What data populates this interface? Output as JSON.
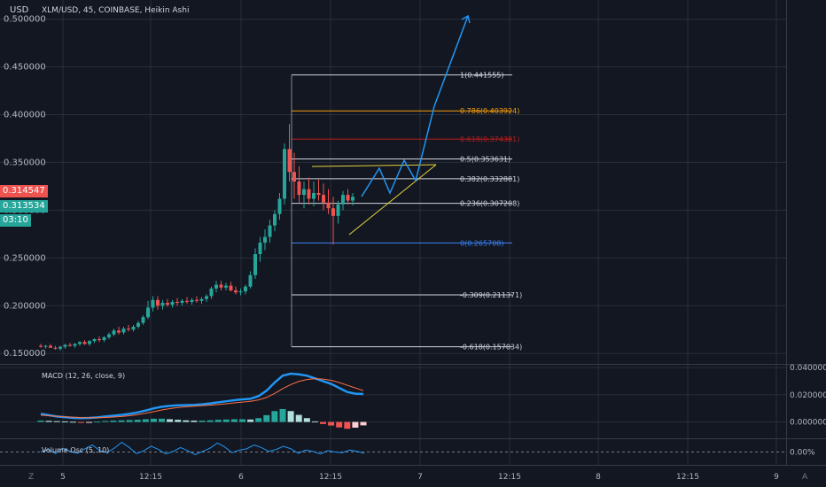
{
  "header": {
    "currency": "USD",
    "title": "XLM/USD, 45, COINBASE, Heikin Ashi"
  },
  "price_tags": {
    "last_close": "0.314547",
    "prev": "0.313534",
    "countdown": "03:10",
    "last_color": "#ef5350",
    "prev_color": "#26a69a"
  },
  "chart_data": [
    {
      "type": "candlestick",
      "title": "XLM/USD, 45, COINBASE, Heikin Ashi",
      "ylim": [
        0.14,
        0.52
      ],
      "y_ticks": [
        "0.500000",
        "0.450000",
        "0.400000",
        "0.350000",
        "0.300000",
        "0.250000",
        "0.200000",
        "0.150000"
      ],
      "y_tick_values": [
        0.5,
        0.45,
        0.4,
        0.35,
        0.3,
        0.25,
        0.2,
        0.15
      ],
      "x_ticks": [
        "5",
        "12:15",
        "6",
        "12:15",
        "7",
        "12:15",
        "8",
        "12:15",
        "9"
      ],
      "up_color": "#26a69a",
      "down_color": "#ef5350",
      "candles": [
        [
          0.158,
          0.16,
          0.156,
          0.157
        ],
        [
          0.157,
          0.159,
          0.155,
          0.158
        ],
        [
          0.158,
          0.16,
          0.156,
          0.156
        ],
        [
          0.156,
          0.158,
          0.154,
          0.155
        ],
        [
          0.155,
          0.158,
          0.153,
          0.157
        ],
        [
          0.157,
          0.16,
          0.155,
          0.159
        ],
        [
          0.159,
          0.161,
          0.157,
          0.158
        ],
        [
          0.158,
          0.161,
          0.156,
          0.16
        ],
        [
          0.16,
          0.163,
          0.158,
          0.162
        ],
        [
          0.162,
          0.164,
          0.159,
          0.16
        ],
        [
          0.16,
          0.164,
          0.158,
          0.163
        ],
        [
          0.163,
          0.166,
          0.161,
          0.165
        ],
        [
          0.165,
          0.168,
          0.162,
          0.164
        ],
        [
          0.164,
          0.168,
          0.162,
          0.167
        ],
        [
          0.167,
          0.172,
          0.165,
          0.17
        ],
        [
          0.17,
          0.176,
          0.168,
          0.174
        ],
        [
          0.174,
          0.178,
          0.17,
          0.172
        ],
        [
          0.172,
          0.178,
          0.17,
          0.176
        ],
        [
          0.176,
          0.18,
          0.173,
          0.175
        ],
        [
          0.175,
          0.18,
          0.173,
          0.178
        ],
        [
          0.178,
          0.184,
          0.176,
          0.182
        ],
        [
          0.182,
          0.19,
          0.18,
          0.188
        ],
        [
          0.188,
          0.205,
          0.186,
          0.198
        ],
        [
          0.198,
          0.21,
          0.194,
          0.206
        ],
        [
          0.206,
          0.21,
          0.196,
          0.2
        ],
        [
          0.2,
          0.206,
          0.196,
          0.203
        ],
        [
          0.203,
          0.207,
          0.199,
          0.201
        ],
        [
          0.201,
          0.206,
          0.198,
          0.204
        ],
        [
          0.204,
          0.208,
          0.2,
          0.203
        ],
        [
          0.203,
          0.207,
          0.2,
          0.205
        ],
        [
          0.205,
          0.209,
          0.202,
          0.204
        ],
        [
          0.204,
          0.208,
          0.201,
          0.206
        ],
        [
          0.206,
          0.21,
          0.203,
          0.205
        ],
        [
          0.205,
          0.209,
          0.202,
          0.207
        ],
        [
          0.207,
          0.212,
          0.204,
          0.21
        ],
        [
          0.21,
          0.22,
          0.207,
          0.218
        ],
        [
          0.218,
          0.226,
          0.214,
          0.222
        ],
        [
          0.222,
          0.226,
          0.216,
          0.219
        ],
        [
          0.219,
          0.224,
          0.216,
          0.221
        ],
        [
          0.221,
          0.225,
          0.215,
          0.216
        ],
        [
          0.216,
          0.22,
          0.212,
          0.214
        ],
        [
          0.214,
          0.218,
          0.211,
          0.215
        ],
        [
          0.215,
          0.222,
          0.212,
          0.22
        ],
        [
          0.22,
          0.236,
          0.218,
          0.232
        ],
        [
          0.232,
          0.26,
          0.228,
          0.254
        ],
        [
          0.254,
          0.272,
          0.246,
          0.266
        ],
        [
          0.266,
          0.28,
          0.258,
          0.272
        ],
        [
          0.272,
          0.29,
          0.266,
          0.284
        ],
        [
          0.284,
          0.3,
          0.278,
          0.296
        ],
        [
          0.296,
          0.318,
          0.29,
          0.312
        ],
        [
          0.312,
          0.37,
          0.306,
          0.364
        ],
        [
          0.364,
          0.39,
          0.33,
          0.34
        ],
        [
          0.34,
          0.36,
          0.312,
          0.33
        ],
        [
          0.33,
          0.346,
          0.308,
          0.316
        ],
        [
          0.316,
          0.33,
          0.302,
          0.322
        ],
        [
          0.322,
          0.334,
          0.306,
          0.312
        ],
        [
          0.312,
          0.33,
          0.304,
          0.318
        ],
        [
          0.318,
          0.332,
          0.31,
          0.316
        ],
        [
          0.316,
          0.328,
          0.3,
          0.308
        ],
        [
          0.308,
          0.322,
          0.296,
          0.302
        ],
        [
          0.302,
          0.314,
          0.264,
          0.294
        ],
        [
          0.294,
          0.31,
          0.286,
          0.306
        ],
        [
          0.306,
          0.32,
          0.3,
          0.316
        ],
        [
          0.316,
          0.322,
          0.306,
          0.31
        ],
        [
          0.31,
          0.318,
          0.305,
          0.314
        ]
      ],
      "fibonacci": [
        {
          "label": "1(0.441555)",
          "value": 0.441555,
          "color": "#d1d4dc"
        },
        {
          "label": "0.786(0.403924)",
          "value": 0.403924,
          "color": "#f59e0b"
        },
        {
          "label": "0.618(0.374381)",
          "value": 0.374381,
          "color": "#b91c1c"
        },
        {
          "label": "0.5(0.353631)",
          "value": 0.353631,
          "color": "#d1d4dc"
        },
        {
          "label": "0.382(0.332881)",
          "value": 0.332881,
          "color": "#d1d4dc"
        },
        {
          "label": "0.236(0.307208)",
          "value": 0.307208,
          "color": "#d1d4dc"
        },
        {
          "label": "0(0.265708)",
          "value": 0.265708,
          "color": "#3b82f6"
        },
        {
          "label": "-0.309(0.211371)",
          "value": 0.211371,
          "color": "#d1d4dc"
        },
        {
          "label": "-0.618(0.157034)",
          "value": 0.157034,
          "color": "#d1d4dc"
        }
      ]
    },
    {
      "type": "line",
      "title": "MACD (12, 26, close, 9)",
      "ylim": [
        -0.012,
        0.042
      ],
      "y_ticks": [
        "0.040000",
        "0.020000",
        "0.000000"
      ],
      "y_tick_values": [
        0.04,
        0.02,
        0.0
      ],
      "series": [
        {
          "values": [
            0.006,
            0.005,
            0.004,
            0.0035,
            0.003,
            0.0028,
            0.003,
            0.0034,
            0.004,
            0.0046,
            0.0052,
            0.006,
            0.007,
            0.0084,
            0.01,
            0.0112,
            0.0118,
            0.0122,
            0.0124,
            0.0126,
            0.013,
            0.0136,
            0.0144,
            0.0152,
            0.016,
            0.0166,
            0.017,
            0.019,
            0.023,
            0.029,
            0.034,
            0.0355,
            0.035,
            0.034,
            0.032,
            0.03,
            0.028,
            0.025,
            0.022,
            0.0208,
            0.0205
          ],
          "color": "#2196f3"
        },
        {
          "values": [
            0.005,
            0.0046,
            0.0042,
            0.0038,
            0.0035,
            0.0032,
            0.0031,
            0.0031,
            0.0033,
            0.0036,
            0.004,
            0.0046,
            0.0054,
            0.0064,
            0.0076,
            0.0088,
            0.0098,
            0.0106,
            0.0112,
            0.0116,
            0.012,
            0.0124,
            0.0128,
            0.0134,
            0.014,
            0.0146,
            0.0152,
            0.0162,
            0.018,
            0.021,
            0.0245,
            0.0275,
            0.0298,
            0.0312,
            0.0318,
            0.0315,
            0.0306,
            0.029,
            0.027,
            0.025,
            0.023
          ],
          "color": "#ff7043"
        }
      ],
      "histogram": [
        0.001,
        0.0008,
        0.0006,
        0.0004,
        0.0002,
        -0.0002,
        -0.0001,
        0.0003,
        0.0007,
        0.001,
        0.0012,
        0.0014,
        0.0016,
        0.002,
        0.0024,
        0.0024,
        0.002,
        0.0016,
        0.0012,
        0.001,
        0.001,
        0.0012,
        0.0016,
        0.0018,
        0.002,
        0.002,
        0.0018,
        0.0028,
        0.005,
        0.008,
        0.0095,
        0.008,
        0.0052,
        0.0028,
        0.0004,
        -0.0015,
        -0.0026,
        -0.004,
        -0.005,
        -0.0042,
        -0.0025
      ]
    },
    {
      "type": "line",
      "title": "Volume Osc (5, 10)",
      "ylim": [
        -0.4,
        0.4
      ],
      "y_ticks": [
        "0.00%"
      ],
      "y_tick_values": [
        0.0
      ],
      "series": [
        {
          "values": [
            0.0,
            0.08,
            -0.05,
            0.12,
            0.02,
            -0.04,
            0.1,
            0.22,
            0.05,
            -0.02,
            0.12,
            0.3,
            0.15,
            -0.05,
            0.04,
            0.18,
            0.08,
            -0.06,
            0.02,
            0.14,
            0.04,
            -0.08,
            0.02,
            0.12,
            0.28,
            0.16,
            -0.02,
            0.06,
            0.1,
            0.22,
            0.14,
            0.02,
            0.08,
            0.18,
            0.1,
            -0.04,
            0.06,
            0.02,
            -0.06,
            0.04,
            0.0,
            -0.02,
            0.06,
            0.02,
            -0.04
          ],
          "color": "#2196f3"
        }
      ]
    }
  ]
}
